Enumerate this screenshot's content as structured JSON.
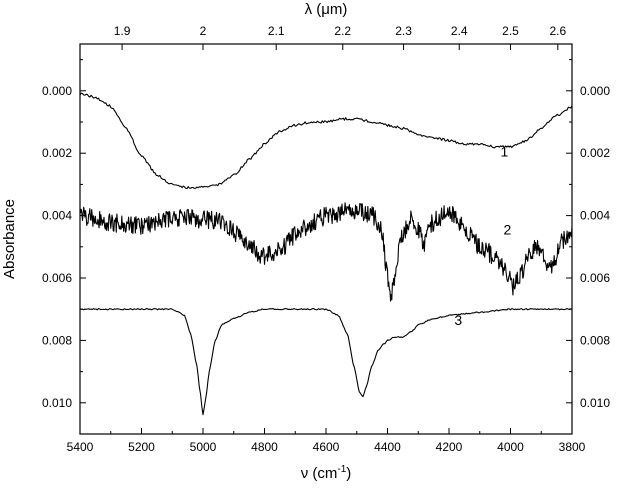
{
  "chart_data": {
    "type": "line",
    "xlabel": "ν (cm⁻¹)",
    "xlabel_main": "ν (cm",
    "xlabel_sup": "-1",
    "xlabel_close": ")",
    "x2label": "λ (μm)",
    "ylabel": "Absorbance",
    "xlim": [
      5400,
      3800
    ],
    "ylim": [
      0.011,
      -0.0015
    ],
    "y_inverted": true,
    "x_ticks": [
      5400,
      5200,
      5000,
      4800,
      4600,
      4400,
      4200,
      4000,
      3800
    ],
    "x_tick_labels": [
      "5400",
      "5200",
      "5000",
      "4800",
      "4600",
      "4400",
      "4200",
      "4000",
      "3800"
    ],
    "x2_ticks_um": [
      1.9,
      2.0,
      2.1,
      2.2,
      2.3,
      2.4,
      2.5,
      2.6
    ],
    "x2_tick_labels": [
      "1.9",
      "2",
      "2.1",
      "2.2",
      "2.3",
      "2.4",
      "2.5",
      "2.6"
    ],
    "y_ticks": [
      0.0,
      0.002,
      0.004,
      0.006,
      0.008,
      0.01
    ],
    "y_tick_labels": [
      "0.000",
      "0.002",
      "0.004",
      "0.006",
      "0.008",
      "0.010"
    ],
    "grid": false,
    "series": [
      {
        "name": "1",
        "noise": 4e-05,
        "x": [
          5400,
          5350,
          5300,
          5250,
          5200,
          5150,
          5100,
          5050,
          5000,
          4950,
          4900,
          4850,
          4800,
          4750,
          4700,
          4650,
          4600,
          4550,
          4500,
          4450,
          4400,
          4350,
          4300,
          4250,
          4200,
          4150,
          4100,
          4050,
          4000,
          3950,
          3900,
          3850,
          3800
        ],
        "y": [
          0.0001,
          0.0002,
          0.0005,
          0.0012,
          0.0021,
          0.0027,
          0.003,
          0.0031,
          0.0031,
          0.003,
          0.0027,
          0.0022,
          0.0017,
          0.0013,
          0.0011,
          0.001,
          0.001,
          0.0009,
          0.0009,
          0.001,
          0.0011,
          0.0012,
          0.0014,
          0.0015,
          0.0016,
          0.0017,
          0.0017,
          0.0018,
          0.0018,
          0.0016,
          0.0012,
          0.0008,
          0.0005
        ]
      },
      {
        "name": "2",
        "noise": 0.0003,
        "x": [
          5400,
          5350,
          5300,
          5250,
          5200,
          5150,
          5100,
          5050,
          5000,
          4950,
          4900,
          4850,
          4800,
          4750,
          4700,
          4650,
          4600,
          4550,
          4500,
          4450,
          4420,
          4400,
          4390,
          4380,
          4350,
          4320,
          4300,
          4280,
          4260,
          4240,
          4200,
          4150,
          4100,
          4050,
          4000,
          3990,
          3970,
          3950,
          3930,
          3900,
          3880,
          3860,
          3840,
          3800
        ],
        "y": [
          0.004,
          0.0041,
          0.0042,
          0.0043,
          0.0043,
          0.0042,
          0.0041,
          0.0041,
          0.0041,
          0.0042,
          0.0045,
          0.005,
          0.0053,
          0.0051,
          0.0046,
          0.0043,
          0.004,
          0.0039,
          0.0038,
          0.004,
          0.0044,
          0.006,
          0.0068,
          0.006,
          0.0046,
          0.0041,
          0.0044,
          0.005,
          0.0043,
          0.0041,
          0.0039,
          0.0044,
          0.005,
          0.0053,
          0.006,
          0.0063,
          0.006,
          0.0055,
          0.0051,
          0.005,
          0.0055,
          0.0056,
          0.0049,
          0.0046
        ]
      },
      {
        "name": "3",
        "noise": 2e-05,
        "x": [
          5400,
          5300,
          5200,
          5100,
          5060,
          5040,
          5020,
          5010,
          5000,
          4990,
          4980,
          4960,
          4940,
          4900,
          4850,
          4800,
          4700,
          4600,
          4560,
          4530,
          4510,
          4490,
          4480,
          4470,
          4450,
          4430,
          4410,
          4400,
          4380,
          4350,
          4320,
          4300,
          4250,
          4200,
          4100,
          4000,
          3900,
          3800
        ],
        "y": [
          0.007,
          0.007,
          0.007,
          0.007,
          0.0072,
          0.0078,
          0.0088,
          0.0096,
          0.0104,
          0.0098,
          0.009,
          0.008,
          0.0075,
          0.0073,
          0.0071,
          0.007,
          0.007,
          0.007,
          0.0072,
          0.0078,
          0.0088,
          0.0097,
          0.0098,
          0.0095,
          0.0088,
          0.0083,
          0.0081,
          0.008,
          0.0079,
          0.0079,
          0.0077,
          0.0075,
          0.0073,
          0.0072,
          0.0071,
          0.007,
          0.007,
          0.007
        ]
      }
    ],
    "curve_label_positions": [
      {
        "series": "1",
        "x": 4020,
        "y": 0.0021
      },
      {
        "series": "2",
        "x": 4010,
        "y": 0.0046
      },
      {
        "series": "3",
        "x": 4170,
        "y": 0.0075
      }
    ]
  }
}
